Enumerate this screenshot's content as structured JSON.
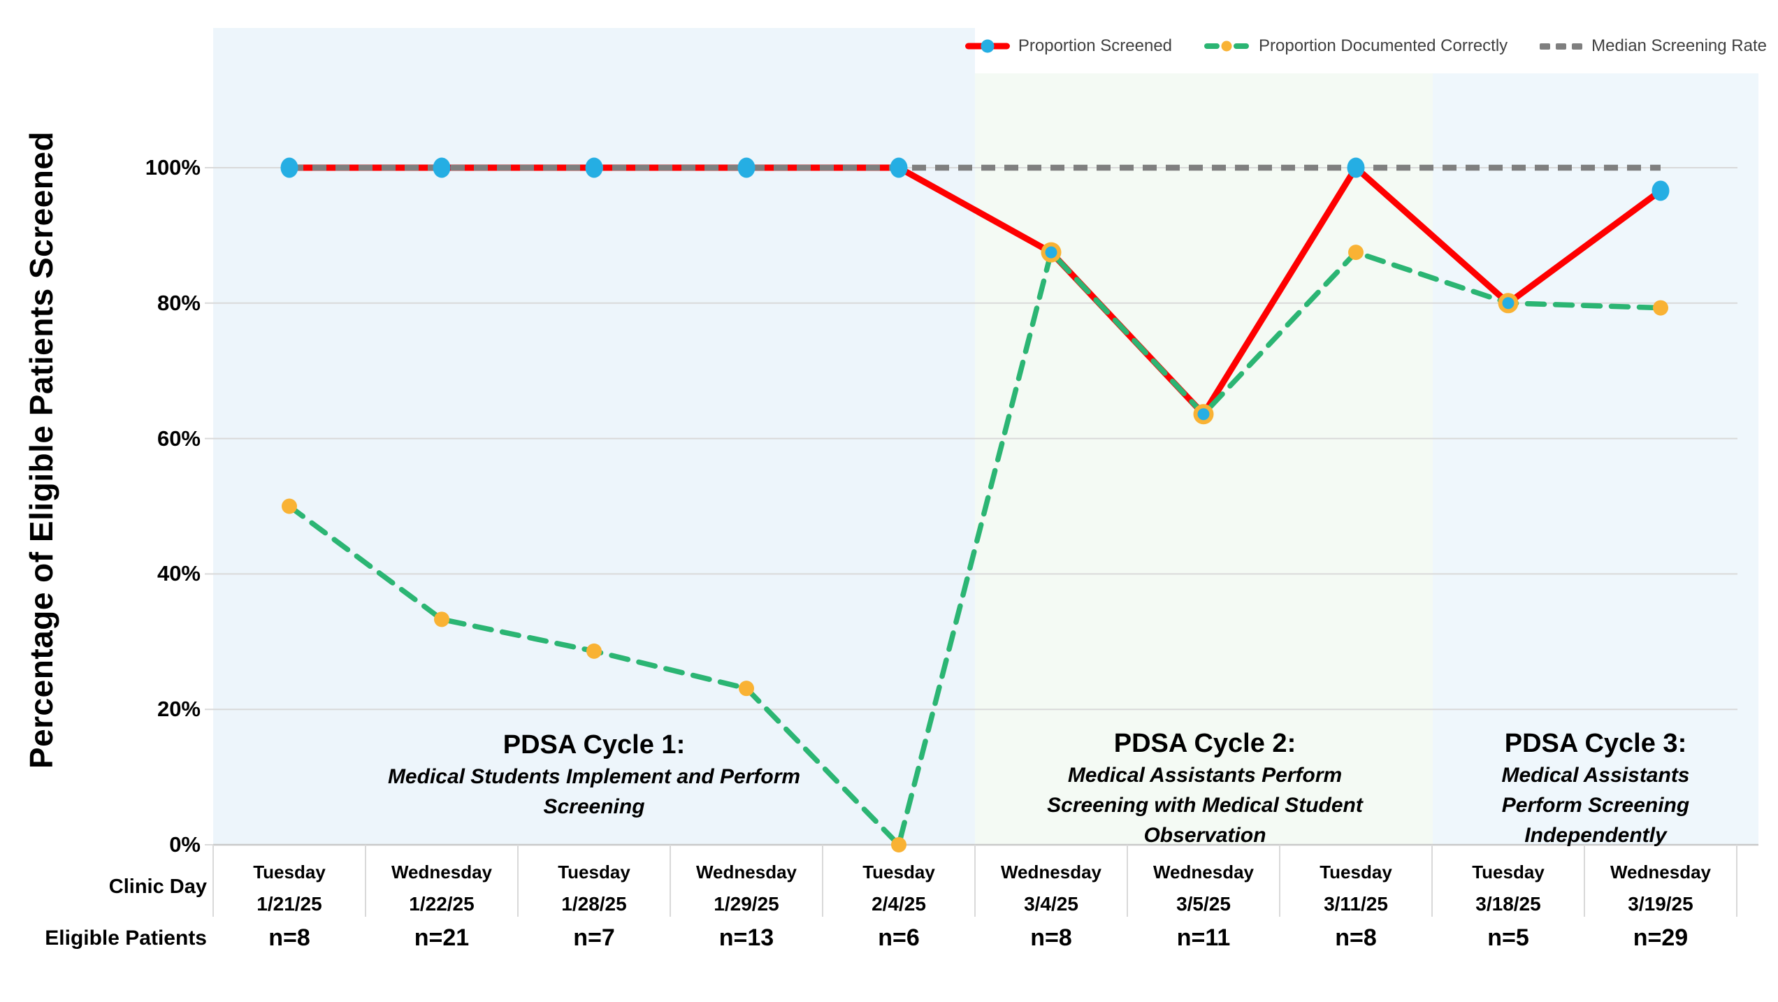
{
  "y_axis": {
    "label": "Percentage of Eligible Patients Screened",
    "ticks": [
      {
        "label": "100%",
        "value": 100
      },
      {
        "label": "80%",
        "value": 80
      },
      {
        "label": "60%",
        "value": 60
      },
      {
        "label": "40%",
        "value": 40
      },
      {
        "label": "20%",
        "value": 20
      },
      {
        "label": "0%",
        "value": 0
      }
    ]
  },
  "legend": {
    "items": [
      {
        "label": "Proportion Screened",
        "marker": "red-line-blue-dot"
      },
      {
        "label": "Proportion Documented Correctly",
        "marker": "green-dash-orange-dot"
      },
      {
        "label": "Median Screening Rate",
        "marker": "gray-dash"
      }
    ]
  },
  "x_axis": {
    "row_labels": {
      "clinic_day": "Clinic Day",
      "eligible_patients": "Eligible Patients"
    },
    "columns": [
      {
        "day": "Tuesday",
        "date": "1/21/25",
        "n": "n=8"
      },
      {
        "day": "Wednesday",
        "date": "1/22/25",
        "n": "n=21"
      },
      {
        "day": "Tuesday",
        "date": "1/28/25",
        "n": "n=7"
      },
      {
        "day": "Wednesday",
        "date": "1/29/25",
        "n": "n=13"
      },
      {
        "day": "Tuesday",
        "date": "2/4/25",
        "n": "n=6"
      },
      {
        "day": "Wednesday",
        "date": "3/4/25",
        "n": "n=8"
      },
      {
        "day": "Wednesday",
        "date": "3/5/25",
        "n": "n=11"
      },
      {
        "day": "Tuesday",
        "date": "3/11/25",
        "n": "n=8"
      },
      {
        "day": "Tuesday",
        "date": "3/18/25",
        "n": "n=5"
      },
      {
        "day": "Wednesday",
        "date": "3/19/25",
        "n": "n=29"
      }
    ]
  },
  "annotations": [
    {
      "title": "PDSA Cycle 1:",
      "lines": [
        "Medical Students Implement and Perform",
        "Screening"
      ]
    },
    {
      "title": "PDSA Cycle 2:",
      "lines": [
        "Medical Assistants Perform",
        "Screening with Medical Student",
        "Observation"
      ]
    },
    {
      "title": "PDSA Cycle 3:",
      "lines": [
        "Medical Assistants",
        "Perform Screening",
        "Independently"
      ]
    }
  ],
  "colors": {
    "screened_line": "#fe0000",
    "screened_marker": "#25aee3",
    "documented_line": "#2bb573",
    "documented_marker": "#f9b234",
    "median_line": "#7f7f7f",
    "gridline": "#d9d9d9",
    "axis_line": "#c9c9c9",
    "region1": "#edf5fb",
    "region2": "#f4faf4",
    "region3": "#eff7fc",
    "legend_text": "#3f3f3f"
  },
  "chart_data": {
    "type": "line",
    "categories": [
      "1/21/25",
      "1/22/25",
      "1/28/25",
      "1/29/25",
      "2/4/25",
      "3/4/25",
      "3/5/25",
      "3/11/25",
      "3/18/25",
      "3/19/25"
    ],
    "category_days": [
      "Tuesday",
      "Wednesday",
      "Tuesday",
      "Wednesday",
      "Tuesday",
      "Wednesday",
      "Wednesday",
      "Tuesday",
      "Tuesday",
      "Wednesday"
    ],
    "sample_sizes": [
      8,
      21,
      7,
      13,
      6,
      8,
      11,
      8,
      5,
      29
    ],
    "series": [
      {
        "name": "Proportion Screened",
        "style": "solid",
        "values": [
          100,
          100,
          100,
          100,
          100,
          87.5,
          63.6,
          100,
          80,
          96.6
        ]
      },
      {
        "name": "Proportion Documented Correctly",
        "style": "dashed",
        "values": [
          50,
          33.3,
          28.6,
          23.1,
          0,
          87.5,
          63.6,
          87.5,
          80,
          79.3
        ]
      },
      {
        "name": "Median Screening Rate",
        "style": "dashed",
        "values": [
          100,
          100,
          100,
          100,
          100,
          100,
          100,
          100,
          100,
          100
        ],
        "markers": false
      }
    ],
    "title": "",
    "xlabel": "Clinic Day",
    "ylabel": "Percentage of Eligible Patients Screened",
    "ylim": [
      0,
      118
    ],
    "yticks": [
      0,
      20,
      40,
      60,
      80,
      100
    ],
    "grid": true,
    "legend_position": "top-right",
    "regions": [
      {
        "label": "PDSA Cycle 1",
        "columns": [
          0,
          4
        ]
      },
      {
        "label": "PDSA Cycle 2",
        "columns": [
          5,
          7
        ]
      },
      {
        "label": "PDSA Cycle 3",
        "columns": [
          8,
          9
        ]
      }
    ]
  }
}
